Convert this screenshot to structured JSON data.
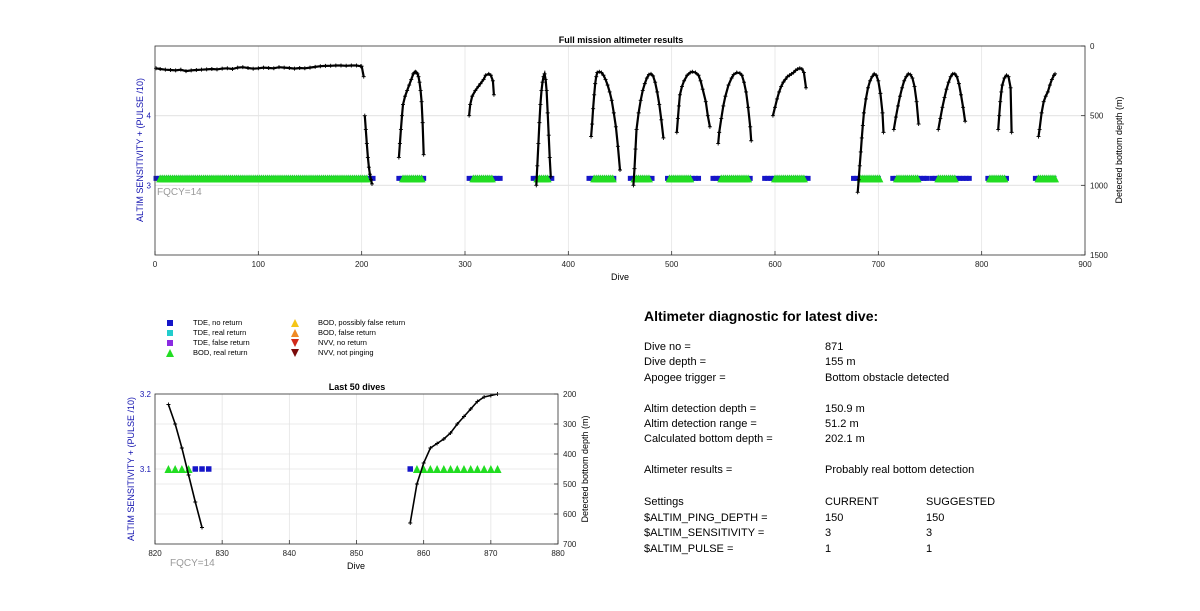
{
  "chart_data": [
    {
      "type": "scatter",
      "title": "Full mission altimeter results",
      "xlabel": "Dive",
      "ylabel_left": "ALTIM SENSITIVITY + (PULSE /10)",
      "ylabel_right": "Detected bottom depth (m)",
      "annotation": "FQCY=14",
      "xlim": [
        0,
        900
      ],
      "ylim_left": [
        2,
        5
      ],
      "ylim_right": [
        0,
        1500
      ],
      "right_axis_reversed": true,
      "xticks": [
        0,
        100,
        200,
        300,
        400,
        500,
        600,
        700,
        800,
        900
      ],
      "yticks_left": [
        3,
        4
      ],
      "yticks_right": [
        0,
        500,
        1000,
        1500
      ],
      "grid": true,
      "setting_level": 3.1,
      "bottom_depth_segments": [
        {
          "x": [
            1,
            5,
            10,
            15,
            20,
            25,
            30,
            35,
            40,
            45,
            50,
            55,
            60,
            65,
            70,
            75,
            80,
            85,
            90,
            95,
            100,
            105,
            110,
            115,
            120,
            125,
            130,
            135,
            140,
            145,
            150,
            155,
            160,
            165,
            170,
            175,
            180,
            185,
            190,
            195,
            199
          ],
          "y": [
            160,
            165,
            170,
            172,
            175,
            170,
            180,
            175,
            172,
            170,
            168,
            165,
            168,
            162,
            160,
            165,
            155,
            152,
            158,
            163,
            160,
            155,
            158,
            160,
            152,
            155,
            158,
            162,
            158,
            160,
            155,
            150,
            145,
            143,
            142,
            140,
            140,
            142,
            140,
            140,
            145
          ]
        },
        {
          "x": [
            200,
            202
          ],
          "y": [
            145,
            220
          ]
        },
        {
          "x": [
            203,
            204,
            205,
            206,
            207,
            208,
            209,
            210
          ],
          "y": [
            500,
            600,
            700,
            800,
            870,
            920,
            960,
            990
          ]
        },
        {
          "x": [
            236,
            237,
            238,
            239,
            240,
            242,
            244,
            246,
            248,
            250,
            251,
            252,
            253,
            254,
            255,
            256,
            257,
            258,
            259,
            260
          ],
          "y": [
            800,
            700,
            600,
            500,
            420,
            360,
            320,
            280,
            240,
            200,
            190,
            185,
            190,
            200,
            220,
            260,
            320,
            400,
            550,
            780
          ]
        },
        {
          "x": [
            304,
            305,
            307,
            310,
            313,
            315,
            318,
            320,
            323,
            325,
            327,
            328
          ],
          "y": [
            500,
            420,
            360,
            320,
            290,
            270,
            240,
            210,
            200,
            210,
            250,
            350
          ]
        },
        {
          "x": [
            369,
            370,
            371,
            372,
            373,
            374,
            375,
            376,
            377,
            378,
            379,
            380,
            381,
            382,
            383
          ],
          "y": [
            1000,
            860,
            700,
            550,
            420,
            320,
            260,
            220,
            200,
            240,
            320,
            480,
            640,
            800,
            940
          ]
        },
        {
          "x": [
            422,
            423,
            424,
            425,
            426,
            427,
            428,
            430,
            432,
            434,
            436,
            438,
            440,
            442,
            444,
            446,
            448,
            450
          ],
          "y": [
            650,
            560,
            450,
            350,
            270,
            220,
            190,
            185,
            190,
            210,
            240,
            280,
            330,
            390,
            480,
            580,
            720,
            890
          ]
        },
        {
          "x": [
            463,
            464,
            465,
            466,
            468,
            470,
            472,
            474,
            476,
            478,
            480,
            482,
            484,
            486,
            488,
            490,
            492
          ],
          "y": [
            1000,
            880,
            740,
            600,
            480,
            390,
            320,
            270,
            230,
            205,
            200,
            215,
            260,
            330,
            420,
            530,
            660
          ]
        },
        {
          "x": [
            505,
            506,
            507,
            508,
            510,
            512,
            515,
            518,
            520,
            523,
            526,
            528,
            530,
            533,
            535,
            537
          ],
          "y": [
            620,
            520,
            430,
            350,
            290,
            250,
            210,
            190,
            185,
            190,
            210,
            250,
            310,
            400,
            500,
            580
          ]
        },
        {
          "x": [
            545,
            546,
            548,
            550,
            552,
            555,
            558,
            560,
            563,
            566,
            568,
            570,
            572,
            574,
            576,
            577
          ],
          "y": [
            700,
            620,
            520,
            430,
            360,
            280,
            230,
            205,
            190,
            195,
            210,
            260,
            330,
            440,
            580,
            680
          ]
        },
        {
          "x": [
            598,
            600,
            602,
            604,
            606,
            608,
            610,
            612,
            614,
            616,
            618,
            620,
            622,
            624,
            626,
            628,
            630
          ],
          "y": [
            500,
            440,
            380,
            330,
            290,
            260,
            240,
            220,
            210,
            200,
            190,
            175,
            165,
            160,
            165,
            190,
            300
          ]
        },
        {
          "x": [
            680,
            681,
            682,
            683,
            684,
            685,
            686,
            688,
            690,
            692,
            694,
            696,
            698,
            700,
            702,
            704,
            705
          ],
          "y": [
            1050,
            960,
            860,
            760,
            660,
            570,
            480,
            380,
            300,
            250,
            220,
            200,
            210,
            250,
            340,
            480,
            620
          ]
        },
        {
          "x": [
            715,
            717,
            719,
            721,
            723,
            725,
            727,
            729,
            731,
            733,
            735,
            737,
            739
          ],
          "y": [
            600,
            510,
            430,
            360,
            300,
            250,
            220,
            200,
            205,
            230,
            290,
            400,
            560
          ]
        },
        {
          "x": [
            758,
            760,
            762,
            764,
            766,
            768,
            770,
            772,
            774,
            776,
            778,
            780,
            782,
            784
          ],
          "y": [
            600,
            520,
            440,
            370,
            310,
            260,
            220,
            200,
            200,
            220,
            270,
            350,
            440,
            540
          ]
        },
        {
          "x": [
            816,
            817,
            818,
            819,
            820,
            822,
            824,
            826,
            828,
            829
          ],
          "y": [
            600,
            500,
            400,
            330,
            280,
            230,
            210,
            220,
            300,
            620
          ]
        },
        {
          "x": [
            855,
            856,
            858,
            860,
            862,
            864,
            866,
            868,
            870,
            871
          ],
          "y": [
            650,
            600,
            480,
            400,
            360,
            330,
            280,
            240,
            210,
            200
          ]
        }
      ],
      "tde_no_return_ranges": [
        [
          1,
          212
        ],
        [
          236,
          262
        ],
        [
          304,
          336
        ],
        [
          366,
          385
        ],
        [
          420,
          444
        ],
        [
          460,
          483
        ],
        [
          496,
          528
        ],
        [
          540,
          578
        ],
        [
          590,
          633
        ],
        [
          676,
          702
        ],
        [
          714,
          748
        ],
        [
          752,
          790
        ],
        [
          806,
          826
        ],
        [
          852,
          871
        ]
      ],
      "bod_real_return_ranges": [
        [
          5,
          205
        ],
        [
          240,
          258
        ],
        [
          308,
          327
        ],
        [
          370,
          381
        ],
        [
          425,
          443
        ],
        [
          464,
          478
        ],
        [
          498,
          518
        ],
        [
          548,
          575
        ],
        [
          600,
          628
        ],
        [
          683,
          701
        ],
        [
          718,
          738
        ],
        [
          758,
          775
        ],
        [
          808,
          822
        ],
        [
          855,
          871
        ]
      ]
    },
    {
      "type": "scatter",
      "title": "Last 50 dives",
      "xlabel": "Dive",
      "ylabel_left": "ALTIM SENSITIVITY + (PULSE /10)",
      "ylabel_right": "Detected bottom depth (m)",
      "annotation": "FQCY=14",
      "xlim": [
        820,
        880
      ],
      "ylim_left": [
        3.0,
        3.2
      ],
      "ylim_right": [
        200,
        700
      ],
      "right_axis_reversed": true,
      "xticks": [
        820,
        830,
        840,
        850,
        860,
        870,
        880
      ],
      "yticks_left": [
        3.1,
        3.2
      ],
      "yticks_right": [
        200,
        300,
        400,
        500,
        600,
        700
      ],
      "grid": true,
      "bottom_depth_segments": [
        {
          "x": [
            822,
            823,
            824,
            825,
            826,
            827
          ],
          "y": [
            235,
            300,
            380,
            470,
            560,
            645
          ]
        },
        {
          "x": [
            858,
            859,
            860,
            861,
            862,
            863,
            864,
            865,
            866,
            867,
            868,
            869,
            870,
            871
          ],
          "y": [
            630,
            500,
            430,
            380,
            365,
            350,
            330,
            300,
            275,
            250,
            225,
            210,
            205,
            200
          ]
        }
      ],
      "tde_no_return": {
        "x": [
          826,
          827,
          828,
          858
        ],
        "y": [
          3.1,
          3.1,
          3.1,
          3.1
        ]
      },
      "bod_real_return": {
        "x": [
          822,
          823,
          824,
          825,
          859,
          860,
          861,
          862,
          863,
          864,
          865,
          866,
          867,
          868,
          869,
          870,
          871
        ],
        "y": [
          3.1,
          3.1,
          3.1,
          3.1,
          3.1,
          3.1,
          3.1,
          3.1,
          3.1,
          3.1,
          3.1,
          3.1,
          3.1,
          3.1,
          3.1,
          3.1,
          3.1
        ]
      }
    }
  ],
  "legend": {
    "items": [
      {
        "label": "TDE, no return",
        "symbol": "square",
        "color": "#1515c8"
      },
      {
        "label": "TDE, real return",
        "symbol": "square",
        "color": "#22cccc"
      },
      {
        "label": "TDE, false return",
        "symbol": "square",
        "color": "#8a2be2"
      },
      {
        "label": "BOD, real return",
        "symbol": "triangle-up",
        "color": "#22dd22"
      },
      {
        "label": "BOD, possibly false return",
        "symbol": "triangle-up",
        "color": "#f5c518"
      },
      {
        "label": "BOD, false return",
        "symbol": "triangle-up",
        "color": "#f08a24"
      },
      {
        "label": "NVV, no return",
        "symbol": "triangle-down",
        "color": "#d12a1a"
      },
      {
        "label": "NVV, not pinging",
        "symbol": "triangle-down",
        "color": "#7a0a0a"
      }
    ]
  },
  "diagnostic": {
    "title": "Altimeter diagnostic for latest dive:",
    "rows": [
      {
        "label": "Dive no =",
        "value": "871"
      },
      {
        "label": "Dive depth =",
        "value": "155 m"
      },
      {
        "label": "Apogee trigger =",
        "value": "Bottom obstacle detected"
      },
      {
        "label": "Altim detection depth =",
        "value": "150.9 m"
      },
      {
        "label": "Altim detection range =",
        "value": "51.2 m"
      },
      {
        "label": "Calculated bottom depth =",
        "value": "202.1 m"
      },
      {
        "label": "Altimeter results =",
        "value": "Probably real bottom detection"
      }
    ],
    "settings": {
      "header": {
        "label": "Settings",
        "current": "CURRENT",
        "suggested": "SUGGESTED"
      },
      "rows": [
        {
          "label": "$ALTIM_PING_DEPTH =",
          "current": "150",
          "suggested": "150"
        },
        {
          "label": "$ALTIM_SENSITIVITY =",
          "current": "3",
          "suggested": "3"
        },
        {
          "label": "$ALTIM_PULSE =",
          "current": "1",
          "suggested": "1"
        }
      ]
    }
  },
  "colors": {
    "left_axis": "#1515b0",
    "fqcy_text": "#9a9a9a",
    "line": "#000000",
    "tde_no_return": "#1515c8",
    "bod_real_return": "#22dd22"
  }
}
